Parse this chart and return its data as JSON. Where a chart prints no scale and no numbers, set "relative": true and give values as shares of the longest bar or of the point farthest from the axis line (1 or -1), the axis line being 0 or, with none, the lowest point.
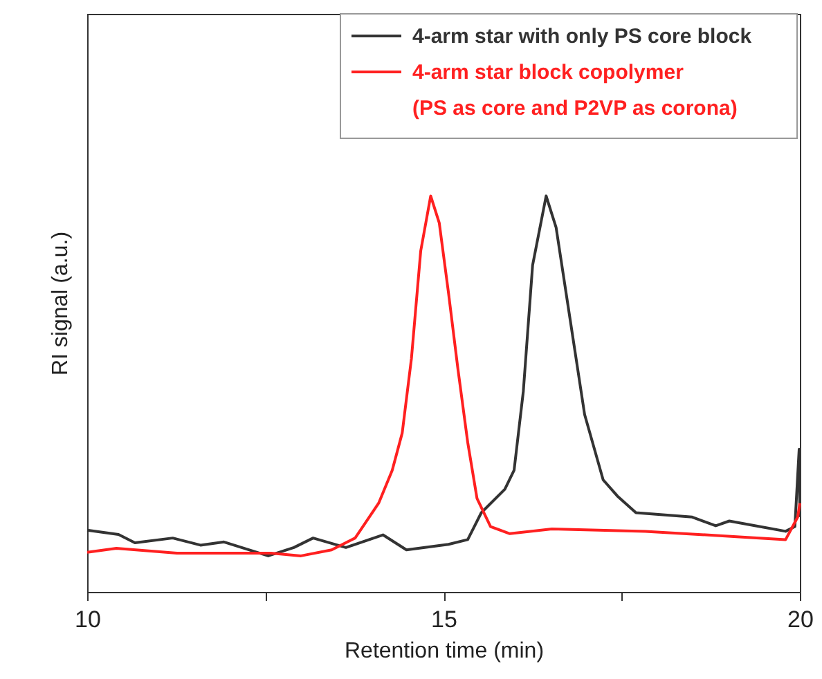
{
  "chart_data": {
    "type": "line",
    "relative": true,
    "xlabel": "Retention time (min)",
    "ylabel": "RI signal (a.u.)",
    "xlim": [
      10,
      20
    ],
    "xticks": [
      10,
      {
        "value": 12.5,
        "label": null
      },
      15,
      {
        "value": 17.5,
        "label": null
      },
      20
    ],
    "legend": "top right",
    "grid": false,
    "line_style": "solid",
    "marker": "none",
    "series": [
      {
        "name": "4-arm star with only PS core block",
        "color": "#333333",
        "x": [
          10.0,
          10.44,
          10.67,
          11.2,
          11.59,
          11.92,
          12.54,
          12.9,
          13.17,
          13.63,
          14.15,
          14.48,
          15.07,
          15.34,
          15.53,
          15.86,
          15.99,
          16.12,
          16.25,
          16.44,
          16.58,
          16.78,
          16.98,
          17.24,
          17.44,
          17.7,
          18.49,
          18.82,
          19.01,
          19.8,
          19.93,
          19.99,
          20.0
        ],
        "values": [
          0.156,
          0.145,
          0.124,
          0.136,
          0.118,
          0.126,
          0.091,
          0.112,
          0.136,
          0.112,
          0.144,
          0.106,
          0.12,
          0.132,
          0.2,
          0.259,
          0.307,
          0.507,
          0.825,
          1.0,
          0.92,
          0.684,
          0.448,
          0.283,
          0.242,
          0.2,
          0.189,
          0.167,
          0.179,
          0.153,
          0.165,
          0.36,
          0.189
        ]
      },
      {
        "name": "4-arm star block copolymer (PS as core and P2VP as corona)",
        "color": "#ff2020",
        "x": [
          10.0,
          10.41,
          11.26,
          12.58,
          13.0,
          13.43,
          13.76,
          14.09,
          14.28,
          14.42,
          14.55,
          14.68,
          14.82,
          14.94,
          15.07,
          15.2,
          15.34,
          15.47,
          15.66,
          15.93,
          16.52,
          17.83,
          19.15,
          19.8,
          19.97,
          20.0
        ],
        "values": [
          0.1,
          0.11,
          0.098,
          0.098,
          0.091,
          0.106,
          0.136,
          0.224,
          0.307,
          0.401,
          0.59,
          0.861,
          1.0,
          0.932,
          0.755,
          0.566,
          0.377,
          0.236,
          0.165,
          0.147,
          0.159,
          0.153,
          0.139,
          0.132,
          0.189,
          0.224
        ]
      }
    ]
  }
}
